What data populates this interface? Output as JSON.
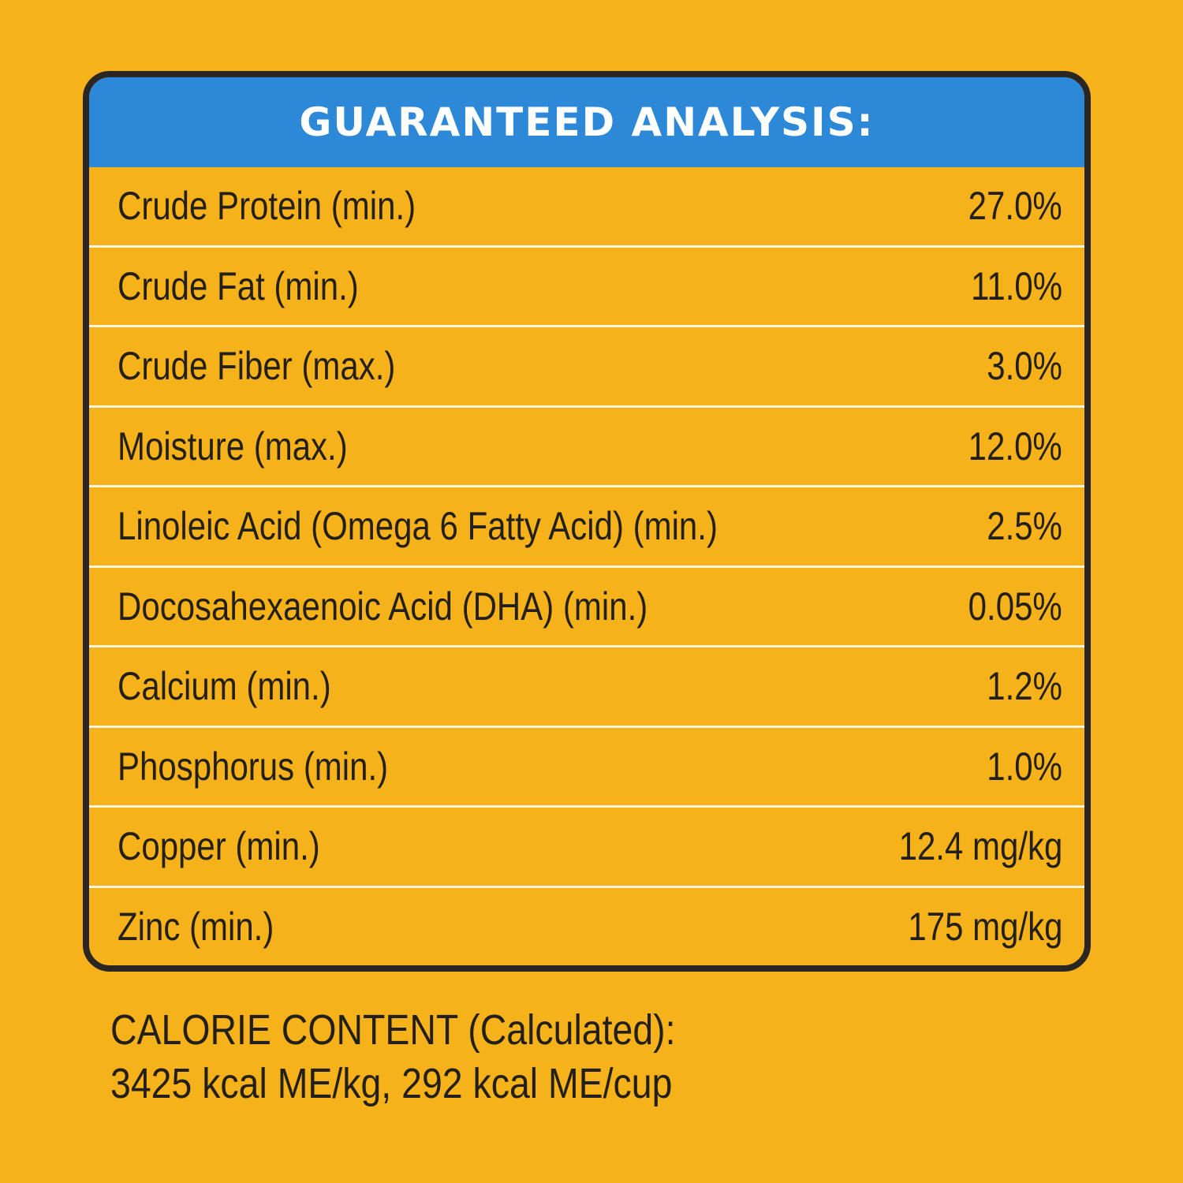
{
  "title": "GUARANTEED ANALYSIS:",
  "rows": [
    {
      "label": "Crude Protein (min.)",
      "value": "27.0%"
    },
    {
      "label": "Crude Fat (min.)",
      "value": "11.0%"
    },
    {
      "label": "Crude Fiber (max.)",
      "value": "3.0%"
    },
    {
      "label": "Moisture (max.)",
      "value": "12.0%"
    },
    {
      "label": "Linoleic Acid (Omega 6 Fatty Acid) (min.)",
      "value": "2.5%"
    },
    {
      "label": "Docosahexaenoic Acid (DHA) (min.)",
      "value": "0.05%"
    },
    {
      "label": "Calcium (min.)",
      "value": "1.2%"
    },
    {
      "label": "Phosphorus (min.)",
      "value": "1.0%"
    },
    {
      "label": "Copper (min.)",
      "value": "12.4 mg/kg"
    },
    {
      "label": "Zinc (min.)",
      "value": "175 mg/kg"
    }
  ],
  "calorie": {
    "heading": "CALORIE CONTENT (Calculated):",
    "value": "3425 kcal ME/kg, 292 kcal ME/cup"
  },
  "colors": {
    "background": "#F6B21B",
    "header": "#2E88D8",
    "border": "#2A2624"
  }
}
